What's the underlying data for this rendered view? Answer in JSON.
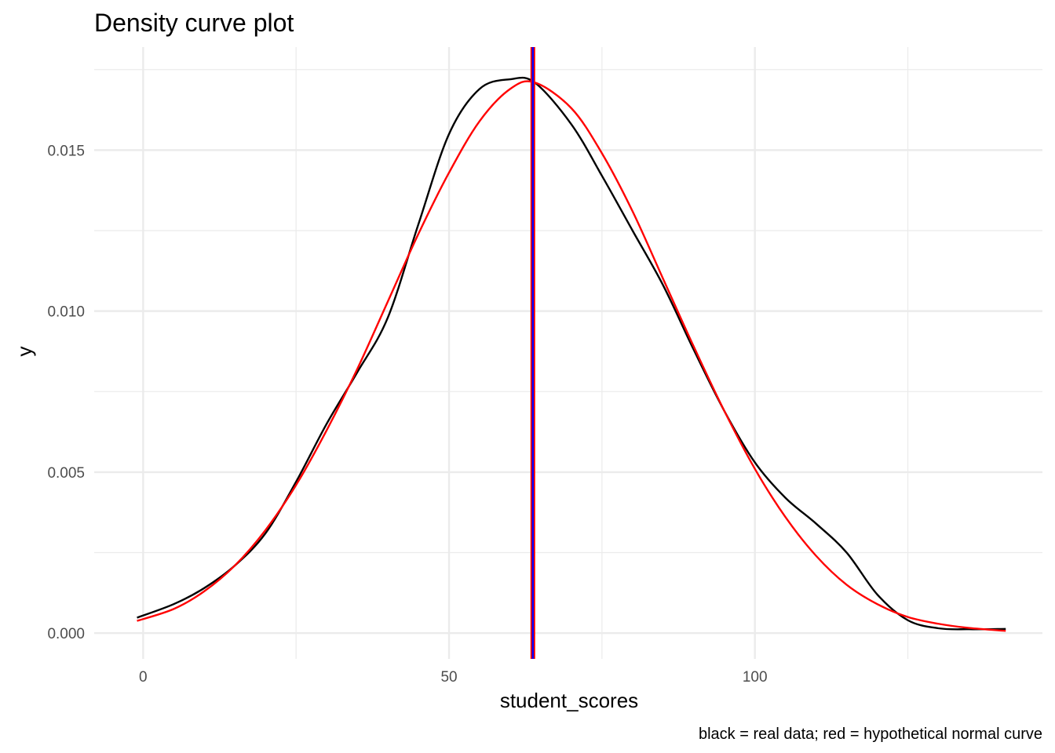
{
  "chart_data": {
    "type": "line",
    "title": "Density curve plot",
    "xlabel": "student_scores",
    "ylabel": "y",
    "caption": "black = real data; red = hypothetical normal curve",
    "xlim": [
      -8,
      147
    ],
    "ylim": [
      -0.0008,
      0.0182
    ],
    "x_ticks": [
      0,
      50,
      100
    ],
    "x_tick_labels": [
      "0",
      "50",
      "100"
    ],
    "x_minor_ticks": [
      25,
      75,
      125
    ],
    "y_ticks": [
      0,
      0.005,
      0.01,
      0.015
    ],
    "y_tick_labels": [
      "0.000",
      "0.005",
      "0.010",
      "0.015"
    ],
    "y_minor_ticks": [
      0.0025,
      0.0075,
      0.0125,
      0.0175
    ],
    "grid": true,
    "legend": "none",
    "colors": {
      "real": "#000000",
      "normal": "#ff0000",
      "mean_line_outer": "#ff0000",
      "mean_line_inner": "#0000ff",
      "grid": "#ebebeb"
    },
    "series": [
      {
        "color": "#000000",
        "x": [
          -1,
          5,
          10,
          15,
          20,
          25,
          30,
          35,
          40,
          45,
          50,
          55,
          60,
          64,
          70,
          75,
          80,
          85,
          90,
          95,
          100,
          105,
          110,
          115,
          120,
          125,
          130,
          135,
          141
        ],
        "y": [
          0.00048,
          0.0009,
          0.0014,
          0.0021,
          0.0031,
          0.0047,
          0.0065,
          0.0081,
          0.0098,
          0.0127,
          0.0155,
          0.0169,
          0.0172,
          0.0171,
          0.0158,
          0.0142,
          0.0125,
          0.0108,
          0.0088,
          0.0069,
          0.0053,
          0.0042,
          0.0034,
          0.0025,
          0.0012,
          0.0004,
          0.00015,
          0.00012,
          0.00013
        ]
      },
      {
        "color": "#ff0000",
        "x": [
          -1,
          5,
          10,
          15,
          20,
          25,
          30,
          35,
          40,
          45,
          50,
          55,
          60,
          64,
          70,
          75,
          80,
          85,
          90,
          95,
          100,
          105,
          110,
          115,
          120,
          125,
          130,
          135,
          141
        ],
        "y": [
          0.00038,
          0.00075,
          0.0013,
          0.0021,
          0.0032,
          0.0046,
          0.0063,
          0.0082,
          0.0103,
          0.0124,
          0.0143,
          0.0159,
          0.0169,
          0.0171,
          0.0163,
          0.0149,
          0.0131,
          0.011,
          0.0089,
          0.0069,
          0.0051,
          0.0036,
          0.0024,
          0.0015,
          0.0009,
          0.0005,
          0.00029,
          0.00016,
          7e-05
        ]
      }
    ],
    "vertical_line_x": 63.7
  }
}
